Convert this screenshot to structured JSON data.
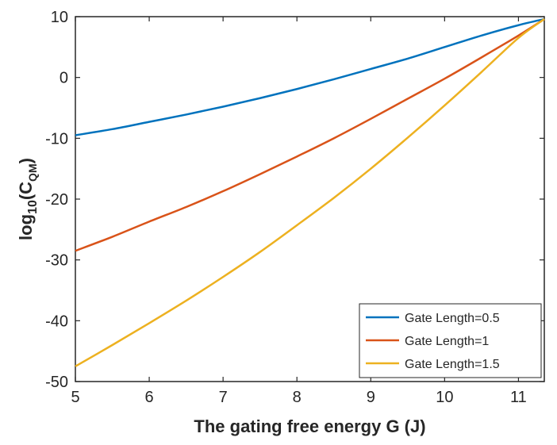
{
  "chart_data": {
    "type": "line",
    "title": "",
    "xlabel": "The gating free energy G (J)",
    "ylabel": {
      "base": "log",
      "base_sub": "10",
      "open": "(C",
      "sub": "QM",
      "close": ")"
    },
    "xlim": [
      5,
      11.35
    ],
    "ylim": [
      -50,
      10
    ],
    "x_ticks": [
      5,
      6,
      7,
      8,
      9,
      10,
      11
    ],
    "y_ticks": [
      10,
      0,
      -10,
      -20,
      -30,
      -40,
      -50
    ],
    "grid": false,
    "legend_position": "bottom-right",
    "x": [
      5,
      5.5,
      6,
      6.5,
      7,
      7.5,
      8,
      8.5,
      9,
      9.5,
      10,
      10.5,
      11,
      11.35
    ],
    "series": [
      {
        "name": "Gate Length=0.5",
        "color": "#0072BD",
        "values": [
          -9.5,
          -8.5,
          -7.3,
          -6.1,
          -4.8,
          -3.4,
          -1.9,
          -0.3,
          1.4,
          3.1,
          5.0,
          6.9,
          8.6,
          9.6
        ]
      },
      {
        "name": "Gate Length=1",
        "color": "#D95319",
        "values": [
          -28.5,
          -26.2,
          -23.7,
          -21.3,
          -18.7,
          -15.9,
          -13.0,
          -10.0,
          -6.8,
          -3.5,
          -0.2,
          3.3,
          6.9,
          9.6
        ]
      },
      {
        "name": "Gate Length=1.5",
        "color": "#EDB120",
        "values": [
          -47.5,
          -44.0,
          -40.4,
          -36.7,
          -32.8,
          -28.7,
          -24.3,
          -19.8,
          -15.0,
          -9.9,
          -4.6,
          0.9,
          6.5,
          9.6
        ]
      }
    ]
  }
}
